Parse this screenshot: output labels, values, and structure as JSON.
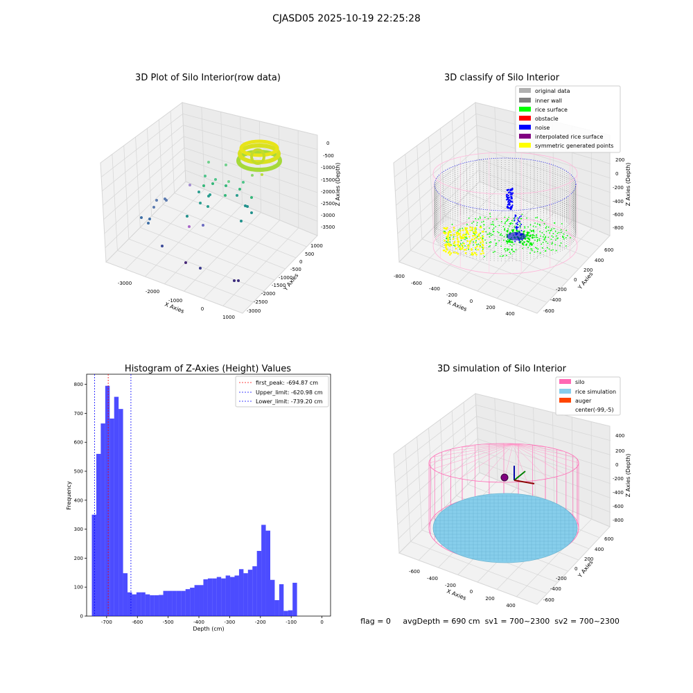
{
  "figure_title": "CJASD05 2025-10-19 22:25:28",
  "status_line": "flag = 0     avgDepth = 690 cm  sv1 = 700~2300  sv2 = 700~2300",
  "panels": {
    "raw": {
      "title": "3D Plot of Silo Interior(row data)",
      "xlabel": "X Axies",
      "ylabel": "Y Axies",
      "zlabel": "Z Axies (Depth)",
      "xticks": [
        "-3000",
        "-2000",
        "-1000",
        "0",
        "1000"
      ],
      "yticks": [
        "1000",
        "500",
        "0",
        "-500",
        "-1000",
        "-1500",
        "-2000",
        "-2500",
        "-3000"
      ],
      "zticks": [
        "0",
        "-500",
        "-1000",
        "-1500",
        "-2000",
        "-2500",
        "-3000",
        "-3500"
      ]
    },
    "classify": {
      "title": "3D classify of Silo Interior",
      "xlabel": "X Axies",
      "ylabel": "Y Axies",
      "zlabel": "Z Axies (Depth)",
      "xticks": [
        "-800",
        "-600",
        "-400",
        "-200",
        "0",
        "200",
        "400"
      ],
      "yticks": [
        "600",
        "400",
        "200",
        "0",
        "-200",
        "-400",
        "-600"
      ],
      "zticks": [
        "200",
        "0",
        "-200",
        "-400",
        "-600",
        "-800"
      ],
      "legend": [
        {
          "label": "original data",
          "color": "#b0b0b0"
        },
        {
          "label": "inner wall",
          "color": "#808080"
        },
        {
          "label": "rice surface",
          "color": "#00ff00"
        },
        {
          "label": "obstacle",
          "color": "#ff0000"
        },
        {
          "label": "noise",
          "color": "#0000ff"
        },
        {
          "label": "interpolated rice surface",
          "color": "#800080"
        },
        {
          "label": "symmetric generated points",
          "color": "#ffff00"
        }
      ]
    },
    "simulation": {
      "title": "3D simulation of Silo Interior",
      "xlabel": "X Axies",
      "ylabel": "Y Axies",
      "zlabel": "Z Axies (Depth)",
      "xticks": [
        "-600",
        "-400",
        "-200",
        "0",
        "200",
        "400"
      ],
      "yticks": [
        "600",
        "400",
        "200",
        "0",
        "-200",
        "-400",
        "-600"
      ],
      "zticks": [
        "400",
        "200",
        "0",
        "-200",
        "-400",
        "-600",
        "-800"
      ],
      "legend": [
        {
          "label": "silo",
          "color": "#ff69b4"
        },
        {
          "label": "rice simulation",
          "color": "#87ceeb"
        },
        {
          "label": "auger",
          "color": "#ff4500"
        },
        {
          "label": "center(-99,-5)",
          "color": ""
        }
      ]
    }
  },
  "chart_data": {
    "type": "bar",
    "title": "Histogram of Z-Axies (Height) Values",
    "xlabel": "Depth (cm)",
    "ylabel": "Frequency",
    "xlim": [
      -765,
      28
    ],
    "ylim": [
      0,
      835
    ],
    "xticks": [
      -700,
      -600,
      -500,
      -400,
      -300,
      -200,
      -100,
      0
    ],
    "yticks": [
      0,
      100,
      200,
      300,
      400,
      500,
      600,
      700,
      800
    ],
    "bar_color": "#0000ff",
    "bin_start": -748,
    "bin_width": 14.5,
    "values": [
      350,
      560,
      665,
      795,
      682,
      757,
      715,
      148,
      82,
      75,
      82,
      82,
      75,
      72,
      72,
      73,
      87,
      87,
      87,
      87,
      87,
      93,
      98,
      107,
      107,
      127,
      130,
      130,
      135,
      130,
      140,
      135,
      140,
      162,
      148,
      160,
      172,
      225,
      315,
      295,
      125,
      55,
      110,
      18,
      20,
      115
    ],
    "vlines": [
      {
        "label": "first_peak: -694.87 cm",
        "value": -694.87,
        "color": "#ff0000"
      },
      {
        "label": "Upper_limit: -620.98 cm",
        "value": -620.98,
        "color": "#0000ff"
      },
      {
        "label": "Lower_limit: -739.20 cm",
        "value": -739.2,
        "color": "#0000ff"
      }
    ],
    "legend_position": "top-right"
  }
}
